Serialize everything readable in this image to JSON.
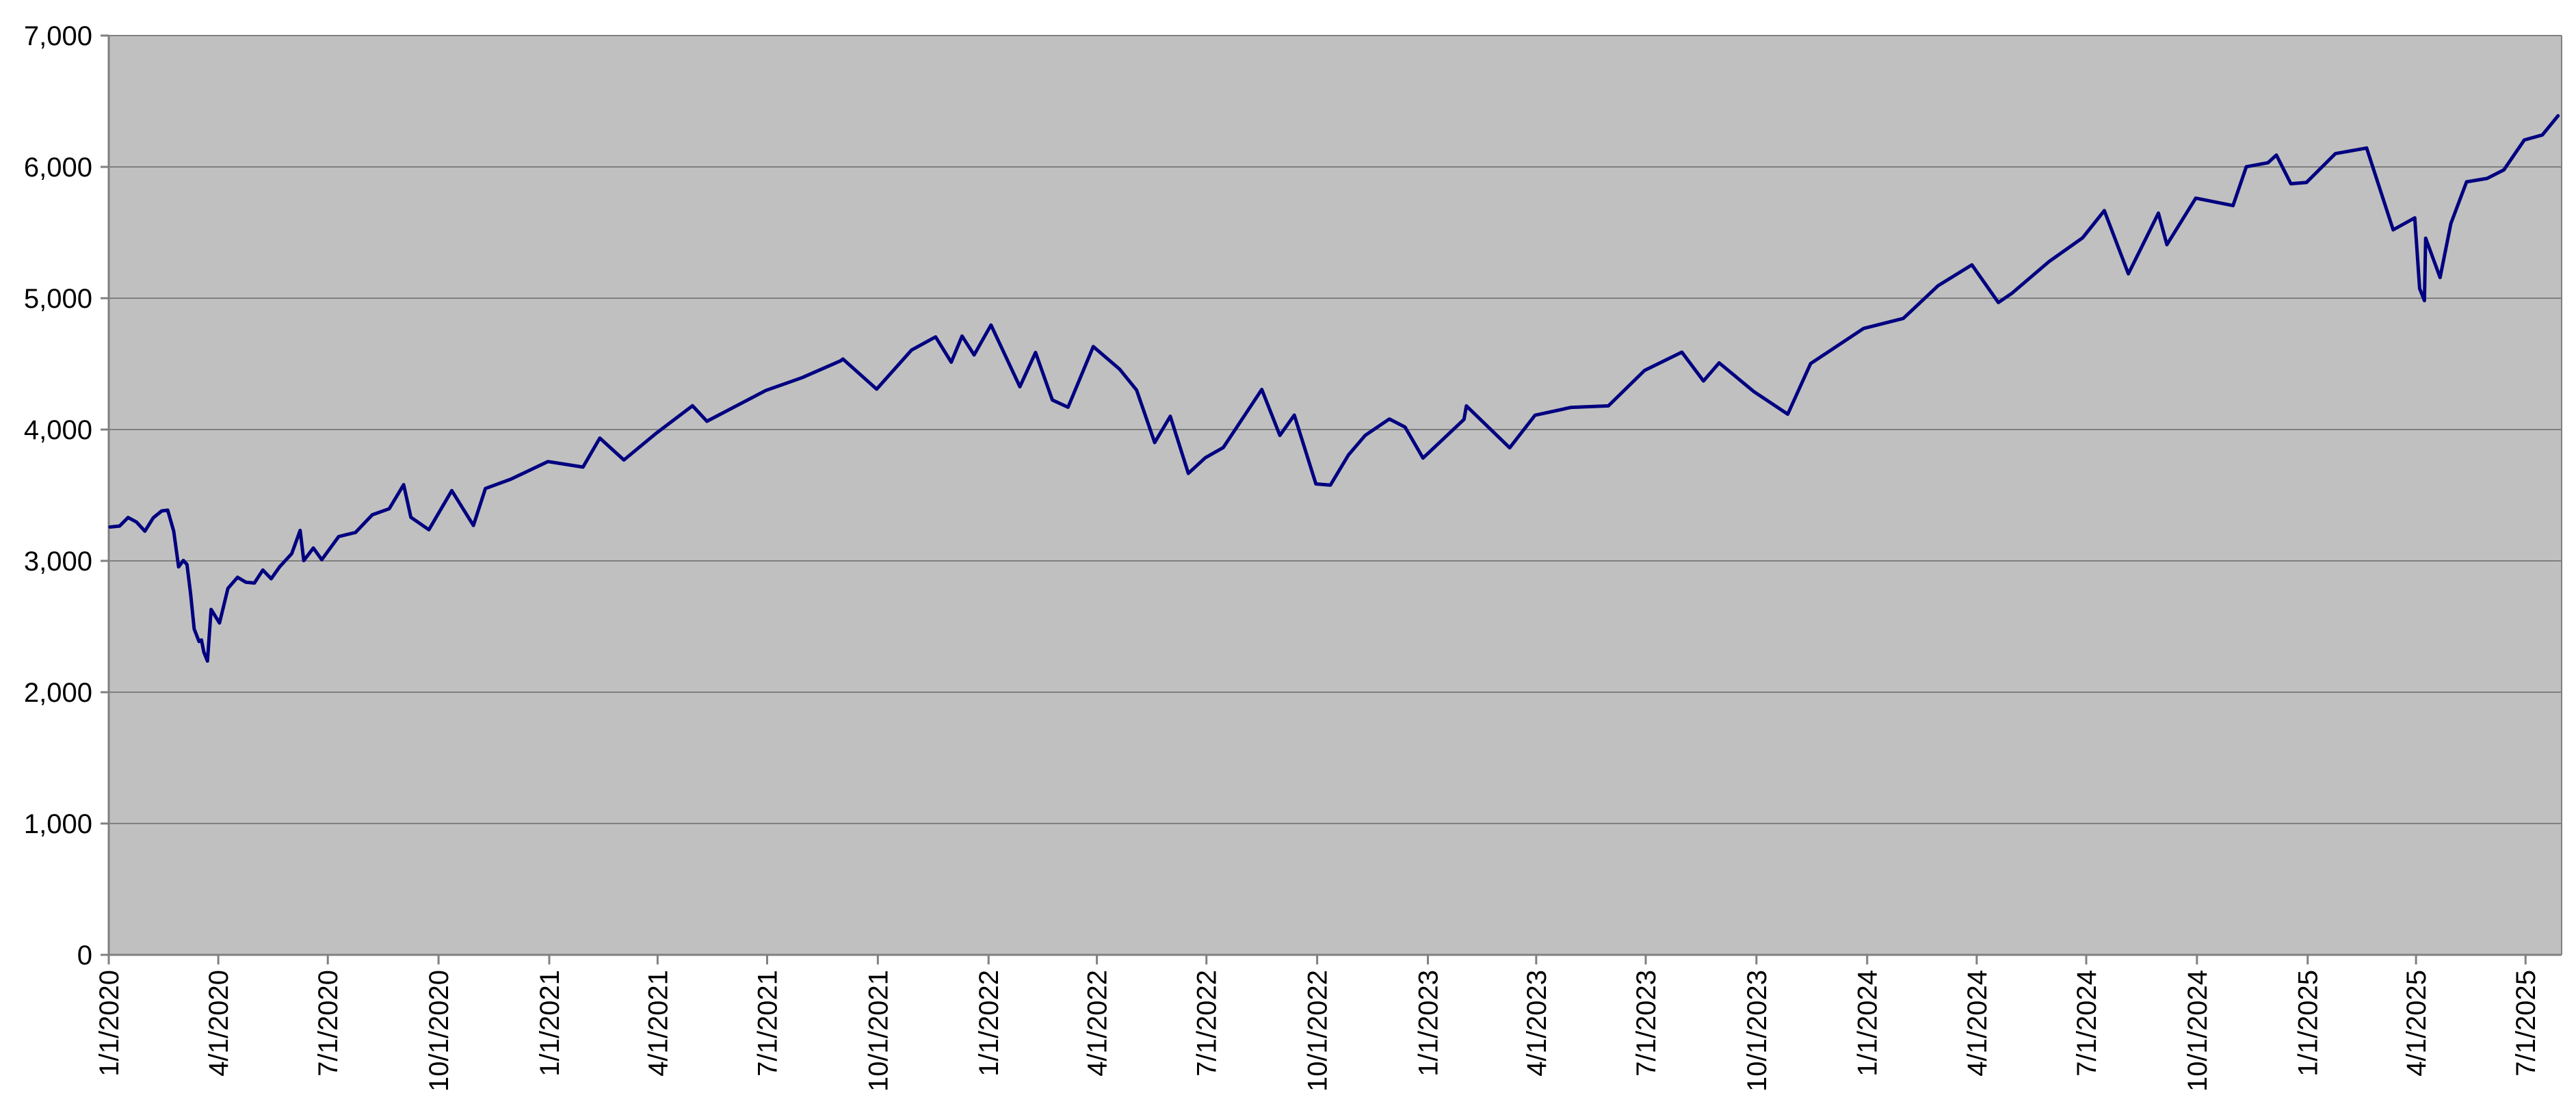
{
  "chart_data": {
    "type": "line",
    "title": "",
    "xlabel": "",
    "ylabel": "",
    "ylim": [
      0,
      7000
    ],
    "xlim": [
      "2020-01-01",
      "2025-07-31"
    ],
    "y_ticks": [
      0,
      1000,
      2000,
      3000,
      4000,
      5000,
      6000,
      7000
    ],
    "y_tick_labels": [
      "0",
      "1,000",
      "2,000",
      "3,000",
      "4,000",
      "5,000",
      "6,000",
      "7,000"
    ],
    "x_ticks": [
      "2020-01-01",
      "2020-04-01",
      "2020-07-01",
      "2020-10-01",
      "2021-01-01",
      "2021-04-01",
      "2021-07-01",
      "2021-10-01",
      "2022-01-01",
      "2022-04-01",
      "2022-07-01",
      "2022-10-01",
      "2023-01-01",
      "2023-04-01",
      "2023-07-01",
      "2023-10-01",
      "2024-01-01",
      "2024-04-01",
      "2024-07-01",
      "2024-10-01",
      "2025-01-01",
      "2025-04-01",
      "2025-07-01"
    ],
    "x_tick_labels": [
      "1/1/2020",
      "4/1/2020",
      "7/1/2020",
      "10/1/2020",
      "1/1/2021",
      "4/1/2021",
      "7/1/2021",
      "10/1/2021",
      "1/1/2022",
      "4/1/2022",
      "7/1/2022",
      "10/1/2022",
      "1/1/2023",
      "4/1/2023",
      "7/1/2023",
      "10/1/2023",
      "1/1/2024",
      "4/1/2024",
      "7/1/2024",
      "10/1/2024",
      "1/1/2025",
      "4/1/2025",
      "7/1/2025"
    ],
    "grid": "horizontal",
    "legend": "none",
    "colors": {
      "plot_background": "#c0c0c0",
      "line": "#000080",
      "grid": "#808080",
      "axis": "#808080"
    },
    "series": [
      {
        "x": [
          "2020-01-02",
          "2020-01-10",
          "2020-01-17",
          "2020-01-24",
          "2020-01-31",
          "2020-02-07",
          "2020-02-14",
          "2020-02-19",
          "2020-02-24",
          "2020-02-28",
          "2020-03-03",
          "2020-03-06",
          "2020-03-09",
          "2020-03-12",
          "2020-03-16",
          "2020-03-18",
          "2020-03-20",
          "2020-03-23",
          "2020-03-26",
          "2020-04-02",
          "2020-04-09",
          "2020-04-17",
          "2020-04-24",
          "2020-05-01",
          "2020-05-08",
          "2020-05-15",
          "2020-05-22",
          "2020-06-01",
          "2020-06-08",
          "2020-06-11",
          "2020-06-19",
          "2020-06-26",
          "2020-07-10",
          "2020-07-24",
          "2020-08-07",
          "2020-08-21",
          "2020-09-02",
          "2020-09-08",
          "2020-09-23",
          "2020-10-12",
          "2020-10-30",
          "2020-11-09",
          "2020-11-30",
          "2020-12-31",
          "2021-01-29",
          "2021-02-12",
          "2021-03-04",
          "2021-03-31",
          "2021-04-30",
          "2021-05-12",
          "2021-06-30",
          "2021-07-30",
          "2021-08-31",
          "2021-09-02",
          "2021-09-30",
          "2021-10-29",
          "2021-11-18",
          "2021-12-01",
          "2021-12-10",
          "2021-12-20",
          "2022-01-03",
          "2022-01-27",
          "2022-02-09",
          "2022-02-23",
          "2022-03-08",
          "2022-03-29",
          "2022-04-20",
          "2022-05-04",
          "2022-05-19",
          "2022-06-01",
          "2022-06-16",
          "2022-06-30",
          "2022-07-15",
          "2022-08-16",
          "2022-08-31",
          "2022-09-12",
          "2022-09-30",
          "2022-10-12",
          "2022-10-27",
          "2022-11-10",
          "2022-11-30",
          "2022-12-13",
          "2022-12-28",
          "2023-01-31",
          "2023-02-02",
          "2023-03-10",
          "2023-03-31",
          "2023-04-30",
          "2023-05-31",
          "2023-06-30",
          "2023-07-31",
          "2023-08-18",
          "2023-08-31",
          "2023-09-29",
          "2023-10-27",
          "2023-11-15",
          "2023-12-29",
          "2024-01-31",
          "2024-02-29",
          "2024-03-28",
          "2024-04-19",
          "2024-04-30",
          "2024-05-31",
          "2024-06-28",
          "2024-07-16",
          "2024-08-05",
          "2024-08-30",
          "2024-09-06",
          "2024-09-30",
          "2024-10-31",
          "2024-11-11",
          "2024-11-29",
          "2024-12-06",
          "2024-12-18",
          "2024-12-31",
          "2025-01-24",
          "2025-02-19",
          "2025-03-13",
          "2025-03-31",
          "2025-04-04",
          "2025-04-08",
          "2025-04-09",
          "2025-04-21",
          "2025-04-30",
          "2025-05-13",
          "2025-05-30",
          "2025-06-13",
          "2025-06-30",
          "2025-07-15",
          "2025-07-28"
        ],
        "y": [
          3258,
          3265,
          3330,
          3296,
          3226,
          3328,
          3380,
          3386,
          3225,
          2954,
          3003,
          2972,
          2747,
          2481,
          2386,
          2398,
          2305,
          2237,
          2630,
          2527,
          2790,
          2875,
          2837,
          2831,
          2930,
          2864,
          2955,
          3055,
          3232,
          3002,
          3098,
          3009,
          3185,
          3216,
          3351,
          3397,
          3580,
          3332,
          3237,
          3535,
          3270,
          3551,
          3622,
          3756,
          3714,
          3935,
          3768,
          3973,
          4181,
          4063,
          4298,
          4395,
          4523,
          4537,
          4308,
          4605,
          4705,
          4513,
          4712,
          4568,
          4796,
          4326,
          4587,
          4225,
          4170,
          4632,
          4459,
          4300,
          3901,
          4101,
          3666,
          3785,
          3863,
          4305,
          3955,
          4110,
          3586,
          3577,
          3807,
          3956,
          4080,
          4019,
          3783,
          4077,
          4180,
          3861,
          4109,
          4169,
          4180,
          4450,
          4589,
          4370,
          4508,
          4288,
          4117,
          4502,
          4770,
          4846,
          5096,
          5254,
          4967,
          5036,
          5278,
          5460,
          5667,
          5186,
          5648,
          5408,
          5762,
          5705,
          6001,
          6032,
          6090,
          5872,
          5882,
          6101,
          6144,
          5521,
          5612,
          5074,
          4982,
          5457,
          5158,
          5569,
          5886,
          5912,
          5977,
          6205,
          6243,
          6389
        ]
      }
    ]
  }
}
